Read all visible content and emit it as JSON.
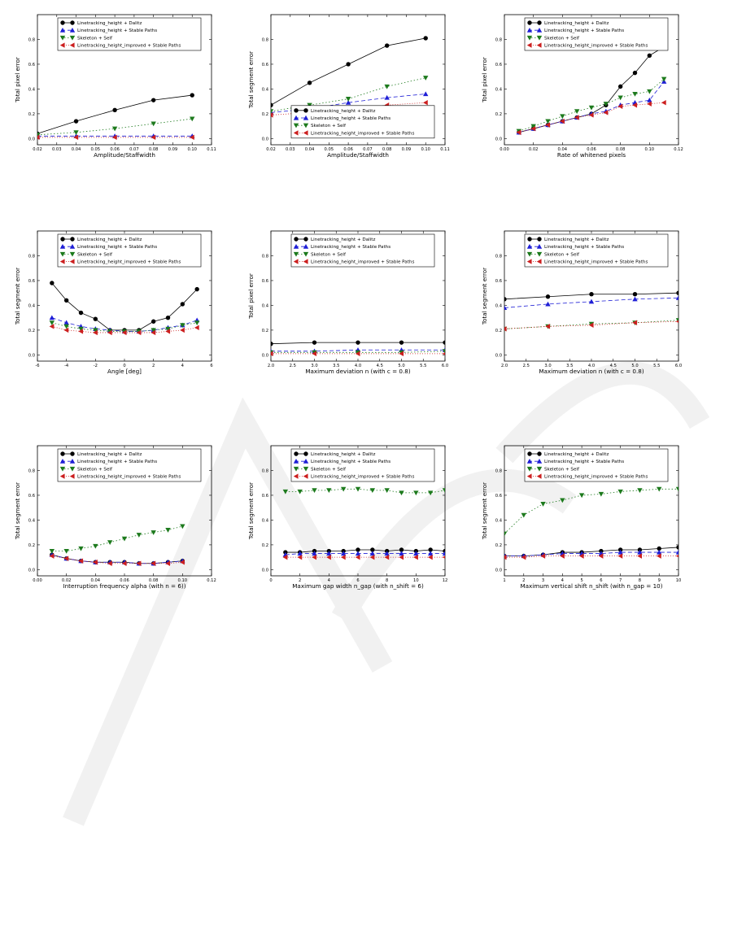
{
  "legend_labels": [
    "Linetracking_height + Dalitz",
    "Linetracking_height + Stable Paths",
    "Skeleton + Self",
    "Linetracking_height_improved + Stable Paths"
  ],
  "series_styles": [
    {
      "color": "#000000",
      "marker": "circle",
      "dash": ""
    },
    {
      "color": "#1f1fd6",
      "marker": "triangle-up",
      "dash": "5,3"
    },
    {
      "color": "#1d7a1d",
      "marker": "triangle-down",
      "dash": "1.5,2.5"
    },
    {
      "color": "#cc1f1f",
      "marker": "triangle-left",
      "dash": "1,2"
    }
  ],
  "watermark_color": "#e6e6e6",
  "chart_data": [
    {
      "type": "line",
      "xlabel": "Amplitude/Staffwidth",
      "ylabel": "Total pixel error",
      "xlim": [
        0.02,
        0.11
      ],
      "ylim": [
        -0.05,
        1.0
      ],
      "xticks": [
        "0.02",
        "0.03",
        "0.04",
        "0.05",
        "0.06",
        "0.07",
        "0.08",
        "0.09",
        "0.10",
        "0.11"
      ],
      "yticks": [
        "0.0",
        "0.2",
        "0.4",
        "0.6",
        "0.8"
      ],
      "legend": "top",
      "x": [
        0.02,
        0.04,
        0.06,
        0.08,
        0.1
      ],
      "series": [
        {
          "name": "Linetracking_height + Dalitz",
          "values": [
            0.04,
            0.14,
            0.23,
            0.31,
            0.35
          ]
        },
        {
          "name": "Linetracking_height + Stable Paths",
          "values": [
            0.02,
            0.02,
            0.02,
            0.02,
            0.02
          ]
        },
        {
          "name": "Skeleton + Self",
          "values": [
            0.03,
            0.05,
            0.08,
            0.12,
            0.16
          ]
        },
        {
          "name": "Linetracking_height_improved + Stable Paths",
          "values": [
            0.01,
            0.01,
            0.01,
            0.01,
            0.01
          ]
        }
      ]
    },
    {
      "type": "line",
      "xlabel": "Amplitude/Staffwidth",
      "ylabel": "Total segment error",
      "xlim": [
        0.02,
        0.11
      ],
      "ylim": [
        -0.05,
        1.0
      ],
      "xticks": [
        "0.02",
        "0.03",
        "0.04",
        "0.05",
        "0.06",
        "0.07",
        "0.08",
        "0.09",
        "0.10",
        "0.11"
      ],
      "yticks": [
        "0.0",
        "0.2",
        "0.4",
        "0.6",
        "0.8"
      ],
      "legend": "lower-center",
      "x": [
        0.02,
        0.04,
        0.06,
        0.08,
        0.1
      ],
      "series": [
        {
          "name": "Linetracking_height + Dalitz",
          "values": [
            0.27,
            0.45,
            0.6,
            0.75,
            0.81
          ]
        },
        {
          "name": "Linetracking_height + Stable Paths",
          "values": [
            0.21,
            0.24,
            0.29,
            0.33,
            0.36
          ]
        },
        {
          "name": "Skeleton + Self",
          "values": [
            0.22,
            0.27,
            0.32,
            0.42,
            0.49
          ]
        },
        {
          "name": "Linetracking_height_improved + Stable Paths",
          "values": [
            0.19,
            0.21,
            0.24,
            0.27,
            0.29
          ]
        }
      ]
    },
    {
      "type": "line",
      "xlabel": "Rate of whitened pixels",
      "ylabel": "Total pixel error",
      "xlim": [
        0.0,
        0.12
      ],
      "ylim": [
        -0.05,
        1.0
      ],
      "xticks": [
        "0.00",
        "0.02",
        "0.04",
        "0.06",
        "0.08",
        "0.10",
        "0.12"
      ],
      "yticks": [
        "0.0",
        "0.2",
        "0.4",
        "0.6",
        "0.8"
      ],
      "legend": "top",
      "x": [
        0.01,
        0.02,
        0.03,
        0.04,
        0.05,
        0.06,
        0.07,
        0.08,
        0.09,
        0.1,
        0.11
      ],
      "series": [
        {
          "name": "Linetracking_height + Dalitz",
          "values": [
            0.05,
            0.08,
            0.11,
            0.14,
            0.17,
            0.2,
            0.27,
            0.42,
            0.53,
            0.67,
            0.74
          ]
        },
        {
          "name": "Linetracking_height + Stable Paths",
          "values": [
            0.05,
            0.08,
            0.11,
            0.14,
            0.17,
            0.2,
            0.22,
            0.27,
            0.29,
            0.31,
            0.46
          ]
        },
        {
          "name": "Skeleton + Self",
          "values": [
            0.06,
            0.1,
            0.14,
            0.18,
            0.22,
            0.25,
            0.28,
            0.33,
            0.36,
            0.38,
            0.48
          ]
        },
        {
          "name": "Linetracking_height_improved + Stable Paths",
          "values": [
            0.05,
            0.08,
            0.11,
            0.14,
            0.17,
            0.19,
            0.21,
            0.26,
            0.27,
            0.28,
            0.29
          ]
        }
      ]
    },
    {
      "type": "line",
      "xlabel": "Angle [deg]",
      "ylabel": "Total segment error",
      "xlim": [
        -6,
        6
      ],
      "ylim": [
        -0.05,
        1.0
      ],
      "xticks": [
        "-6",
        "-4",
        "-2",
        "0",
        "2",
        "4",
        "6"
      ],
      "yticks": [
        "0.0",
        "0.2",
        "0.4",
        "0.6",
        "0.8"
      ],
      "legend": "top",
      "x": [
        -5,
        -4,
        -3,
        -2,
        -1,
        0,
        1,
        2,
        3,
        4,
        5
      ],
      "series": [
        {
          "name": "Linetracking_height + Dalitz",
          "values": [
            0.58,
            0.44,
            0.34,
            0.29,
            0.2,
            0.2,
            0.2,
            0.27,
            0.3,
            0.41,
            0.53
          ]
        },
        {
          "name": "Linetracking_height + Stable Paths",
          "values": [
            0.3,
            0.26,
            0.23,
            0.21,
            0.2,
            0.19,
            0.19,
            0.2,
            0.22,
            0.24,
            0.28
          ]
        },
        {
          "name": "Skeleton + Self",
          "values": [
            0.26,
            0.23,
            0.21,
            0.2,
            0.19,
            0.19,
            0.19,
            0.2,
            0.21,
            0.24,
            0.26
          ]
        },
        {
          "name": "Linetracking_height_improved + Stable Paths",
          "values": [
            0.23,
            0.2,
            0.19,
            0.18,
            0.18,
            0.18,
            0.18,
            0.18,
            0.19,
            0.2,
            0.22
          ]
        }
      ]
    },
    {
      "type": "line",
      "xlabel": "Maximum deviation n (with c = 0.8)",
      "ylabel": "Total pixel error",
      "xlim": [
        2.0,
        6.0
      ],
      "ylim": [
        -0.05,
        1.0
      ],
      "xticks": [
        "2.0",
        "2.5",
        "3.0",
        "3.5",
        "4.0",
        "4.5",
        "5.0",
        "5.5",
        "6.0"
      ],
      "yticks": [
        "0.0",
        "0.2",
        "0.4",
        "0.6",
        "0.8"
      ],
      "legend": "top",
      "x": [
        2,
        3,
        4,
        5,
        6
      ],
      "series": [
        {
          "name": "Linetracking_height + Dalitz",
          "values": [
            0.09,
            0.1,
            0.1,
            0.1,
            0.1
          ]
        },
        {
          "name": "Linetracking_height + Stable Paths",
          "values": [
            0.03,
            0.03,
            0.04,
            0.04,
            0.04
          ]
        },
        {
          "name": "Skeleton + Self",
          "values": [
            0.02,
            0.02,
            0.02,
            0.02,
            0.03
          ]
        },
        {
          "name": "Linetracking_height_improved + Stable Paths",
          "values": [
            0.01,
            0.01,
            0.01,
            0.01,
            0.01
          ]
        }
      ]
    },
    {
      "type": "line",
      "xlabel": "Maximum deviation n (with c = 0.8)",
      "ylabel": "Total segment error",
      "xlim": [
        2.0,
        6.0
      ],
      "ylim": [
        -0.05,
        1.0
      ],
      "xticks": [
        "2.0",
        "2.5",
        "3.0",
        "3.5",
        "4.0",
        "4.5",
        "5.0",
        "5.5",
        "6.0"
      ],
      "yticks": [
        "0.0",
        "0.2",
        "0.4",
        "0.6",
        "0.8"
      ],
      "legend": "top",
      "x": [
        2,
        3,
        4,
        5,
        6
      ],
      "series": [
        {
          "name": "Linetracking_height + Dalitz",
          "values": [
            0.45,
            0.47,
            0.49,
            0.49,
            0.5
          ]
        },
        {
          "name": "Linetracking_height + Stable Paths",
          "values": [
            0.38,
            0.41,
            0.43,
            0.45,
            0.46
          ]
        },
        {
          "name": "Skeleton + Self",
          "values": [
            0.21,
            0.23,
            0.25,
            0.26,
            0.28
          ]
        },
        {
          "name": "Linetracking_height_improved + Stable Paths",
          "values": [
            0.21,
            0.23,
            0.24,
            0.26,
            0.27
          ]
        }
      ]
    },
    {
      "type": "line",
      "xlabel": "Interruption frequency alpha (with n = 6))",
      "ylabel": "Total segment error",
      "xlim": [
        0.0,
        0.12
      ],
      "ylim": [
        -0.05,
        1.0
      ],
      "xticks": [
        "0.00",
        "0.02",
        "0.04",
        "0.06",
        "0.08",
        "0.10",
        "0.12"
      ],
      "yticks": [
        "0.0",
        "0.2",
        "0.4",
        "0.6",
        "0.8"
      ],
      "legend": "top",
      "x": [
        0.01,
        0.02,
        0.03,
        0.04,
        0.05,
        0.06,
        0.07,
        0.08,
        0.09,
        0.1
      ],
      "series": [
        {
          "name": "Linetracking_height + Dalitz",
          "values": [
            0.12,
            0.09,
            0.07,
            0.06,
            0.06,
            0.06,
            0.05,
            0.05,
            0.06,
            0.07
          ]
        },
        {
          "name": "Linetracking_height + Stable Paths",
          "values": [
            0.12,
            0.09,
            0.07,
            0.06,
            0.06,
            0.06,
            0.05,
            0.05,
            0.06,
            0.07
          ]
        },
        {
          "name": "Skeleton + Self",
          "values": [
            0.15,
            0.15,
            0.17,
            0.19,
            0.22,
            0.25,
            0.28,
            0.3,
            0.32,
            0.35
          ]
        },
        {
          "name": "Linetracking_height_improved + Stable Paths",
          "values": [
            0.11,
            0.09,
            0.07,
            0.06,
            0.05,
            0.05,
            0.05,
            0.05,
            0.05,
            0.06
          ]
        }
      ]
    },
    {
      "type": "line",
      "xlabel": "Maximum gap width n_gap (with n_shift = 6)",
      "ylabel": "Total segment error",
      "xlim": [
        0,
        12
      ],
      "ylim": [
        -0.05,
        1.0
      ],
      "xticks": [
        "0",
        "2",
        "4",
        "6",
        "8",
        "10",
        "12"
      ],
      "yticks": [
        "0.0",
        "0.2",
        "0.4",
        "0.6",
        "0.8"
      ],
      "legend": "top",
      "x": [
        1,
        2,
        3,
        4,
        5,
        6,
        7,
        8,
        9,
        10,
        11,
        12
      ],
      "series": [
        {
          "name": "Linetracking_height + Dalitz",
          "values": [
            0.14,
            0.14,
            0.15,
            0.15,
            0.15,
            0.16,
            0.16,
            0.15,
            0.16,
            0.15,
            0.16,
            0.15
          ]
        },
        {
          "name": "Linetracking_height + Stable Paths",
          "values": [
            0.12,
            0.13,
            0.13,
            0.13,
            0.13,
            0.13,
            0.13,
            0.13,
            0.13,
            0.13,
            0.13,
            0.13
          ]
        },
        {
          "name": "Skeleton + Self",
          "values": [
            0.63,
            0.63,
            0.64,
            0.64,
            0.65,
            0.65,
            0.64,
            0.64,
            0.62,
            0.62,
            0.62,
            0.64
          ]
        },
        {
          "name": "Linetracking_height_improved + Stable Paths",
          "values": [
            0.1,
            0.1,
            0.1,
            0.1,
            0.1,
            0.1,
            0.1,
            0.1,
            0.1,
            0.1,
            0.1,
            0.1
          ]
        }
      ]
    },
    {
      "type": "line",
      "xlabel": "Maximum vertical shift n_shift (with n_gap = 10)",
      "ylabel": "Total segment error",
      "xlim": [
        1,
        10
      ],
      "ylim": [
        -0.05,
        1.0
      ],
      "xticks": [
        "1",
        "2",
        "3",
        "4",
        "5",
        "6",
        "7",
        "8",
        "9",
        "10"
      ],
      "yticks": [
        "0.0",
        "0.2",
        "0.4",
        "0.6",
        "0.8"
      ],
      "legend": "top",
      "x": [
        1,
        2,
        3,
        4,
        5,
        6,
        7,
        8,
        9,
        10
      ],
      "series": [
        {
          "name": "Linetracking_height + Dalitz",
          "values": [
            0.11,
            0.11,
            0.12,
            0.14,
            0.14,
            0.15,
            0.16,
            0.16,
            0.17,
            0.18
          ]
        },
        {
          "name": "Linetracking_height + Stable Paths",
          "values": [
            0.11,
            0.11,
            0.12,
            0.13,
            0.13,
            0.13,
            0.14,
            0.14,
            0.14,
            0.14
          ]
        },
        {
          "name": "Skeleton + Self",
          "values": [
            0.29,
            0.44,
            0.53,
            0.56,
            0.6,
            0.61,
            0.63,
            0.64,
            0.65,
            0.65
          ]
        },
        {
          "name": "Linetracking_height_improved + Stable Paths",
          "values": [
            0.1,
            0.1,
            0.11,
            0.11,
            0.11,
            0.11,
            0.11,
            0.11,
            0.11,
            0.11
          ]
        }
      ]
    }
  ]
}
